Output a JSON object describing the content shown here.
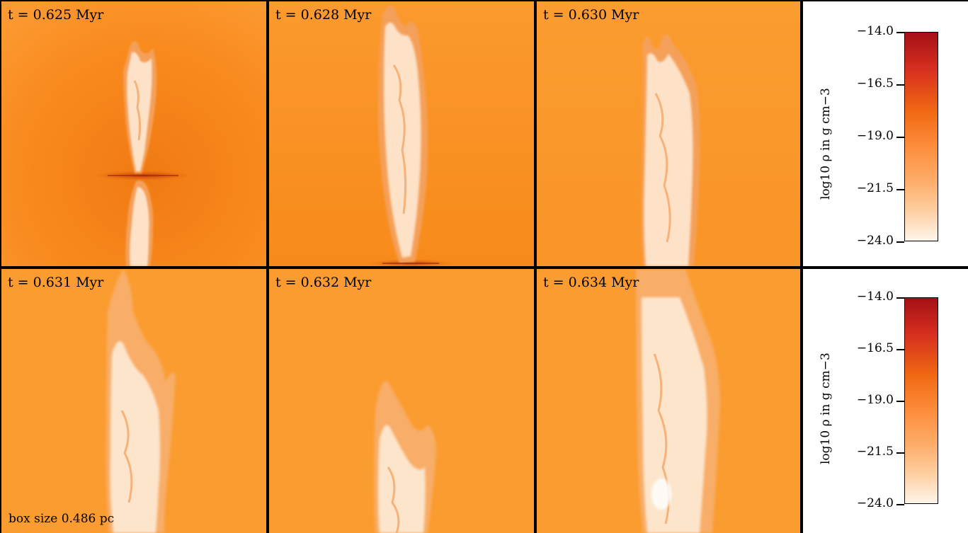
{
  "panels": [
    {
      "label": "t = 0.625 Myr",
      "t": "0.625"
    },
    {
      "label": "t = 0.628 Myr",
      "t": "0.628"
    },
    {
      "label": "t = 0.630 Myr",
      "t": "0.630"
    },
    {
      "label": "t = 0.631 Myr",
      "t": "0.631"
    },
    {
      "label": "t = 0.632 Myr",
      "t": "0.632"
    },
    {
      "label": "t = 0.634 Myr",
      "t": "0.634"
    }
  ],
  "time_unit": "Myr",
  "box_size_label": "box size 0.486 pc",
  "colorbar": {
    "label": "log10 ρ in g cm−3",
    "ticks": [
      "−14.0",
      "−16.5",
      "−19.0",
      "−21.5",
      "−24.0"
    ],
    "range": [
      -24.0,
      -14.0
    ],
    "colors": [
      "#a50f15",
      "#d7301f",
      "#f16913",
      "#fd8d3c",
      "#fdae6b",
      "#fdd0a2",
      "#fff5eb"
    ]
  }
}
